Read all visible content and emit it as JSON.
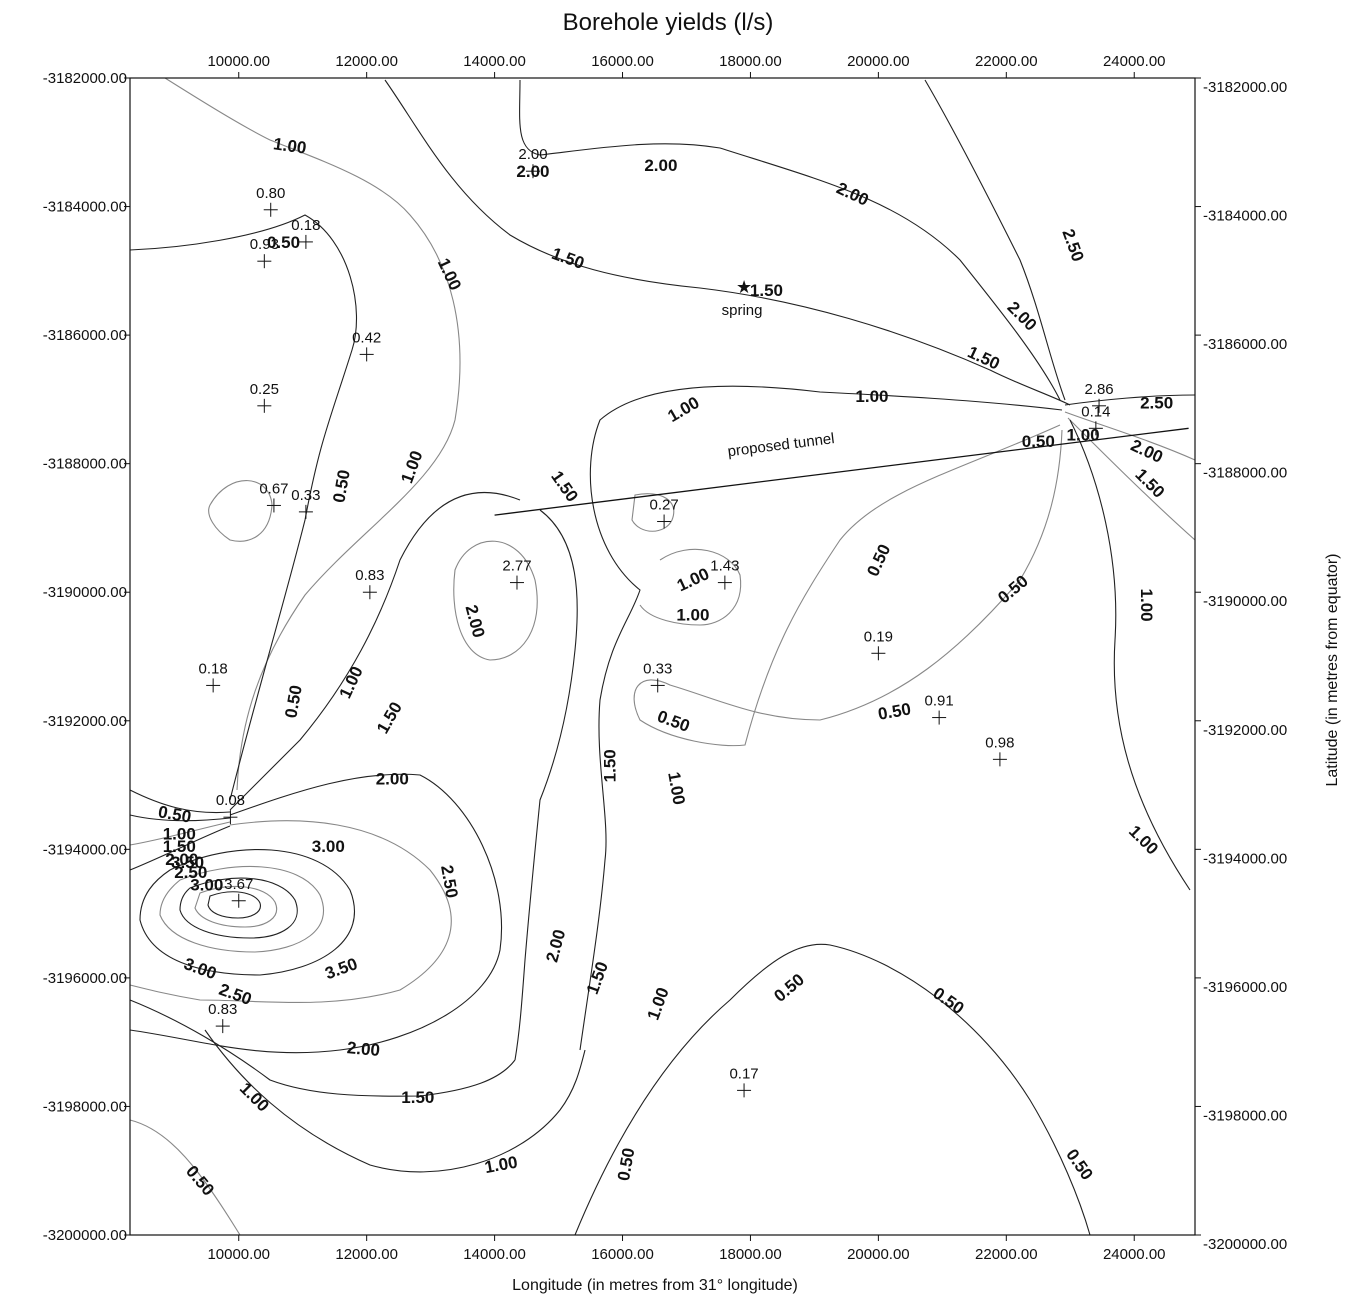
{
  "chart_data": {
    "type": "contour",
    "title": "Borehole yields (l/s)",
    "xlabel": "Longitude (in metres from 31° longitude)",
    "ylabel": "Latitude (in metres from equator)",
    "xlim": [
      8300,
      24950
    ],
    "ylim": [
      -3200000,
      -3182000
    ],
    "x_ticks_bottom": [
      "10000.00",
      "12000.00",
      "14000.00",
      "16000.00",
      "18000.00",
      "20000.00",
      "22000.00",
      "24000.00"
    ],
    "x_ticks_top": [
      "10000.00",
      "12000.00",
      "14000.00",
      "16000.00",
      "18000.00",
      "20000.00",
      "22000.00",
      "24000.00"
    ],
    "y_ticks": [
      "-3182000.00",
      "-3184000.00",
      "-3186000.00",
      "-3188000.00",
      "-3190000.00",
      "-3192000.00",
      "-3194000.00",
      "-3196000.00",
      "-3198000.00",
      "-3200000.00"
    ],
    "boreholes": [
      {
        "x": 10500,
        "y": -3184050,
        "label": "0.80"
      },
      {
        "x": 10400,
        "y": -3184850,
        "label": "0.93"
      },
      {
        "x": 11050,
        "y": -3184550,
        "label": "0.18"
      },
      {
        "x": 12000,
        "y": -3186300,
        "label": "0.42"
      },
      {
        "x": 10400,
        "y": -3187100,
        "label": "0.25"
      },
      {
        "x": 10550,
        "y": -3188650,
        "label": "0.67"
      },
      {
        "x": 11050,
        "y": -3188750,
        "label": "0.33"
      },
      {
        "x": 12050,
        "y": -3190000,
        "label": "0.83"
      },
      {
        "x": 14350,
        "y": -3189850,
        "label": "2.77"
      },
      {
        "x": 14600,
        "y": -3183450,
        "label": "2.00"
      },
      {
        "x": 16650,
        "y": -3188900,
        "label": "0.27"
      },
      {
        "x": 17600,
        "y": -3189850,
        "label": "1.43"
      },
      {
        "x": 16550,
        "y": -3191450,
        "label": "0.33"
      },
      {
        "x": 20000,
        "y": -3190950,
        "label": "0.19"
      },
      {
        "x": 20950,
        "y": -3191950,
        "label": "0.91"
      },
      {
        "x": 21900,
        "y": -3192600,
        "label": "0.98"
      },
      {
        "x": 23450,
        "y": -3187100,
        "label": "2.86"
      },
      {
        "x": 23400,
        "y": -3187450,
        "label": "0.14"
      },
      {
        "x": 9600,
        "y": -3191450,
        "label": "0.18"
      },
      {
        "x": 9870,
        "y": -3193500,
        "label": "0.08"
      },
      {
        "x": 10000,
        "y": -3194800,
        "label": "3.67"
      },
      {
        "x": 9750,
        "y": -3196750,
        "label": "0.83"
      },
      {
        "x": 17900,
        "y": -3197750,
        "label": "0.17"
      }
    ],
    "spring": {
      "x": 17900,
      "y": -3185250,
      "label": "spring"
    },
    "tunnel": {
      "from": {
        "x": 14000,
        "y": -3188800
      },
      "to": {
        "x": 24850,
        "y": -3187450
      },
      "label": "proposed tunnel"
    },
    "contour_levels": [
      "0.50",
      "1.00",
      "1.50",
      "2.00",
      "2.50",
      "3.00",
      "3.50"
    ],
    "contour_labels": [
      {
        "x": 10800,
        "y": -3183050,
        "text": "1.00",
        "rot": 8
      },
      {
        "x": 14600,
        "y": -3183450,
        "text": "2.00",
        "rot": 0
      },
      {
        "x": 16600,
        "y": -3183350,
        "text": "2.00",
        "rot": 0
      },
      {
        "x": 19600,
        "y": -3183800,
        "text": "2.00",
        "rot": 25
      },
      {
        "x": 23050,
        "y": -3184600,
        "text": "2.50",
        "rot": 70
      },
      {
        "x": 22250,
        "y": -3185700,
        "text": "2.00",
        "rot": 45
      },
      {
        "x": 21650,
        "y": -3186350,
        "text": "1.50",
        "rot": 25
      },
      {
        "x": 15150,
        "y": -3184800,
        "text": "1.50",
        "rot": 20
      },
      {
        "x": 18250,
        "y": -3185300,
        "text": "1.50",
        "rot": 0
      },
      {
        "x": 10700,
        "y": -3184550,
        "text": "0.50",
        "rot": 0
      },
      {
        "x": 13300,
        "y": -3185050,
        "text": "1.00",
        "rot": 65
      },
      {
        "x": 19900,
        "y": -3186950,
        "text": "1.00",
        "rot": 0
      },
      {
        "x": 16950,
        "y": -3187150,
        "text": "1.00",
        "rot": -30
      },
      {
        "x": 24350,
        "y": -3187050,
        "text": "2.50",
        "rot": 0
      },
      {
        "x": 24200,
        "y": -3187800,
        "text": "2.00",
        "rot": 25
      },
      {
        "x": 23200,
        "y": -3187550,
        "text": "1.00",
        "rot": 0
      },
      {
        "x": 22500,
        "y": -3187650,
        "text": "0.50",
        "rot": 0
      },
      {
        "x": 24250,
        "y": -3188300,
        "text": "1.50",
        "rot": 45
      },
      {
        "x": 11600,
        "y": -3188350,
        "text": "0.50",
        "rot": -80
      },
      {
        "x": 12700,
        "y": -3188050,
        "text": "1.00",
        "rot": -70
      },
      {
        "x": 15100,
        "y": -3188350,
        "text": "1.50",
        "rot": 55
      },
      {
        "x": 20000,
        "y": -3189500,
        "text": "0.50",
        "rot": -65
      },
      {
        "x": 22100,
        "y": -3189950,
        "text": "0.50",
        "rot": -40
      },
      {
        "x": 24200,
        "y": -3190200,
        "text": "1.00",
        "rot": 90
      },
      {
        "x": 17100,
        "y": -3189800,
        "text": "1.00",
        "rot": -25
      },
      {
        "x": 17100,
        "y": -3190350,
        "text": "1.00",
        "rot": 0
      },
      {
        "x": 13700,
        "y": -3190450,
        "text": "2.00",
        "rot": 75
      },
      {
        "x": 10850,
        "y": -3191700,
        "text": "0.50",
        "rot": -80
      },
      {
        "x": 11750,
        "y": -3191400,
        "text": "1.00",
        "rot": -65
      },
      {
        "x": 12350,
        "y": -3191950,
        "text": "1.50",
        "rot": -60
      },
      {
        "x": 16800,
        "y": -3192000,
        "text": "0.50",
        "rot": 20
      },
      {
        "x": 20250,
        "y": -3191850,
        "text": "0.50",
        "rot": -10
      },
      {
        "x": 12400,
        "y": -3192900,
        "text": "2.00",
        "rot": 0
      },
      {
        "x": 15800,
        "y": -3192700,
        "text": "1.50",
        "rot": -90
      },
      {
        "x": 16850,
        "y": -3193050,
        "text": "1.00",
        "rot": 80
      },
      {
        "x": 24150,
        "y": -3193850,
        "text": "1.00",
        "rot": 45
      },
      {
        "x": 9000,
        "y": -3193450,
        "text": "0.50",
        "rot": 10
      },
      {
        "x": 9070,
        "y": -3193750,
        "text": "1.00",
        "rot": 0
      },
      {
        "x": 9070,
        "y": -3193950,
        "text": "1.50",
        "rot": 0
      },
      {
        "x": 9110,
        "y": -3194150,
        "text": "2.00",
        "rot": 0
      },
      {
        "x": 9250,
        "y": -3194350,
        "text": "2.50",
        "rot": 0
      },
      {
        "x": 9500,
        "y": -3194550,
        "text": "3.00",
        "rot": 0
      },
      {
        "x": 9200,
        "y": -3194200,
        "text": "3.50",
        "rot": 0
      },
      {
        "x": 11400,
        "y": -3193950,
        "text": "3.00",
        "rot": 0
      },
      {
        "x": 13300,
        "y": -3194500,
        "text": "2.50",
        "rot": 80
      },
      {
        "x": 9400,
        "y": -3195850,
        "text": "3.00",
        "rot": 20
      },
      {
        "x": 9950,
        "y": -3196250,
        "text": "2.50",
        "rot": 20
      },
      {
        "x": 11600,
        "y": -3195850,
        "text": "3.50",
        "rot": -20
      },
      {
        "x": 14950,
        "y": -3195500,
        "text": "2.00",
        "rot": -75
      },
      {
        "x": 15600,
        "y": -3196000,
        "text": "1.50",
        "rot": -70
      },
      {
        "x": 16550,
        "y": -3196400,
        "text": "1.00",
        "rot": -70
      },
      {
        "x": 18600,
        "y": -3196150,
        "text": "0.50",
        "rot": -40
      },
      {
        "x": 21100,
        "y": -3196350,
        "text": "0.50",
        "rot": 35
      },
      {
        "x": 11950,
        "y": -3197100,
        "text": "2.00",
        "rot": 5
      },
      {
        "x": 10250,
        "y": -3197850,
        "text": "1.00",
        "rot": 45
      },
      {
        "x": 12800,
        "y": -3197850,
        "text": "1.50",
        "rot": 0
      },
      {
        "x": 14100,
        "y": -3198900,
        "text": "1.00",
        "rot": -10
      },
      {
        "x": 16050,
        "y": -3198900,
        "text": "0.50",
        "rot": -80
      },
      {
        "x": 23150,
        "y": -3198900,
        "text": "0.50",
        "rot": 55
      },
      {
        "x": 9400,
        "y": -3199150,
        "text": "0.50",
        "rot": 50
      }
    ]
  }
}
